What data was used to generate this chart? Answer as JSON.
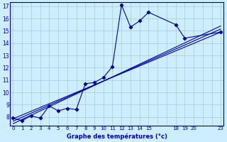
{
  "xlabel": "Graphe des températures (°c)",
  "background_color": "#cceeff",
  "grid_color": "#aacccc",
  "line_color": "#0000aa",
  "scatter_x": [
    0,
    1,
    2,
    3,
    4,
    5,
    6,
    7,
    8,
    9,
    10,
    11,
    12,
    13,
    14,
    15,
    18,
    19,
    23
  ],
  "scatter_y": [
    7.9,
    7.7,
    8.1,
    7.9,
    8.9,
    8.5,
    8.7,
    8.6,
    10.7,
    10.8,
    11.2,
    12.1,
    17.1,
    15.3,
    15.8,
    16.5,
    15.5,
    14.4,
    14.9
  ],
  "trend1_x": [
    0,
    23
  ],
  "trend1_y": [
    7.8,
    14.9
  ],
  "trend2_x": [
    0,
    23
  ],
  "trend2_y": [
    7.5,
    15.2
  ],
  "trend3_x": [
    0,
    23
  ],
  "trend3_y": [
    7.2,
    15.5
  ],
  "xlim": [
    -0.3,
    23.3
  ],
  "ylim": [
    7.3,
    17.3
  ],
  "yticks": [
    8,
    9,
    10,
    11,
    12,
    13,
    14,
    15,
    16,
    17
  ],
  "xticks": [
    0,
    1,
    2,
    3,
    4,
    5,
    6,
    7,
    8,
    9,
    10,
    11,
    12,
    13,
    14,
    15,
    18,
    19,
    20,
    23
  ],
  "xtick_labels": [
    "0",
    "1",
    "2",
    "3",
    "4",
    "5",
    "6",
    "7",
    "8",
    "9",
    "10",
    "11",
    "12",
    "13",
    "14",
    "15",
    "18",
    "19",
    "20",
    "23"
  ]
}
